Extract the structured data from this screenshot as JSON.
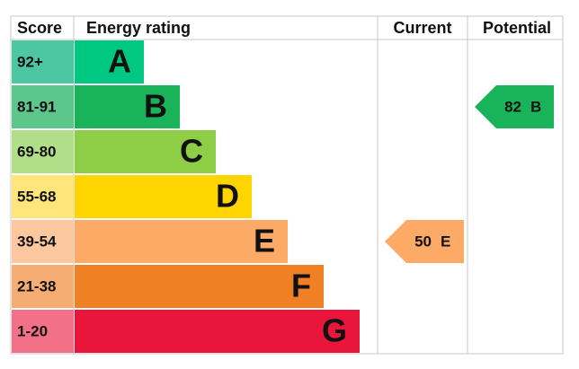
{
  "chart_data": {
    "type": "epc",
    "headers": [
      "Score",
      "Energy rating",
      "Current",
      "Potential"
    ],
    "bands": [
      {
        "score": "92+",
        "letter": "A",
        "color": "#00c781",
        "score_color": "#4cc7a2"
      },
      {
        "score": "81-91",
        "letter": "B",
        "color": "#19b459",
        "score_color": "#5dc68b"
      },
      {
        "score": "69-80",
        "letter": "C",
        "color": "#8dce46",
        "score_color": "#b1de89"
      },
      {
        "score": "55-68",
        "letter": "D",
        "color": "#ffd500",
        "score_color": "#ffe57a"
      },
      {
        "score": "39-54",
        "letter": "E",
        "color": "#fcaa65",
        "score_color": "#fdc8a0"
      },
      {
        "score": "21-38",
        "letter": "F",
        "color": "#ef8023",
        "score_color": "#f5ad74"
      },
      {
        "score": "1-20",
        "letter": "G",
        "color": "#e9153b",
        "score_color": "#f27088"
      }
    ],
    "current": {
      "value": 50,
      "letter": "E"
    },
    "potential": {
      "value": 82,
      "letter": "B"
    }
  }
}
